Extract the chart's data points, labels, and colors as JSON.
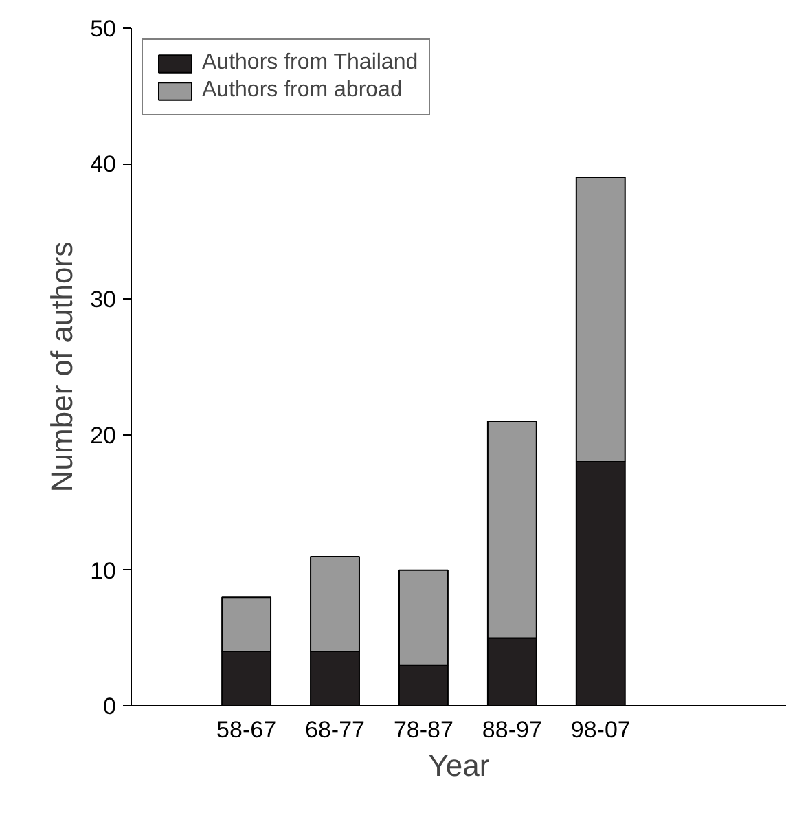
{
  "chart_data": {
    "type": "bar",
    "stacked": true,
    "xlabel": "Year",
    "ylabel": "Number of authors",
    "categories": [
      "58-67",
      "68-77",
      "78-87",
      "88-97",
      "98-07"
    ],
    "series": [
      {
        "name": "Authors from Thailand",
        "color": "#231f20",
        "values": [
          4,
          4,
          3,
          5,
          18
        ]
      },
      {
        "name": "Authors from abroad",
        "color": "#999999",
        "values": [
          4,
          7,
          7,
          16,
          21
        ]
      }
    ],
    "ylim": [
      0,
      50
    ],
    "yticks": [
      0,
      10,
      20,
      30,
      40,
      50
    ],
    "legend": "top left",
    "grid": false
  }
}
